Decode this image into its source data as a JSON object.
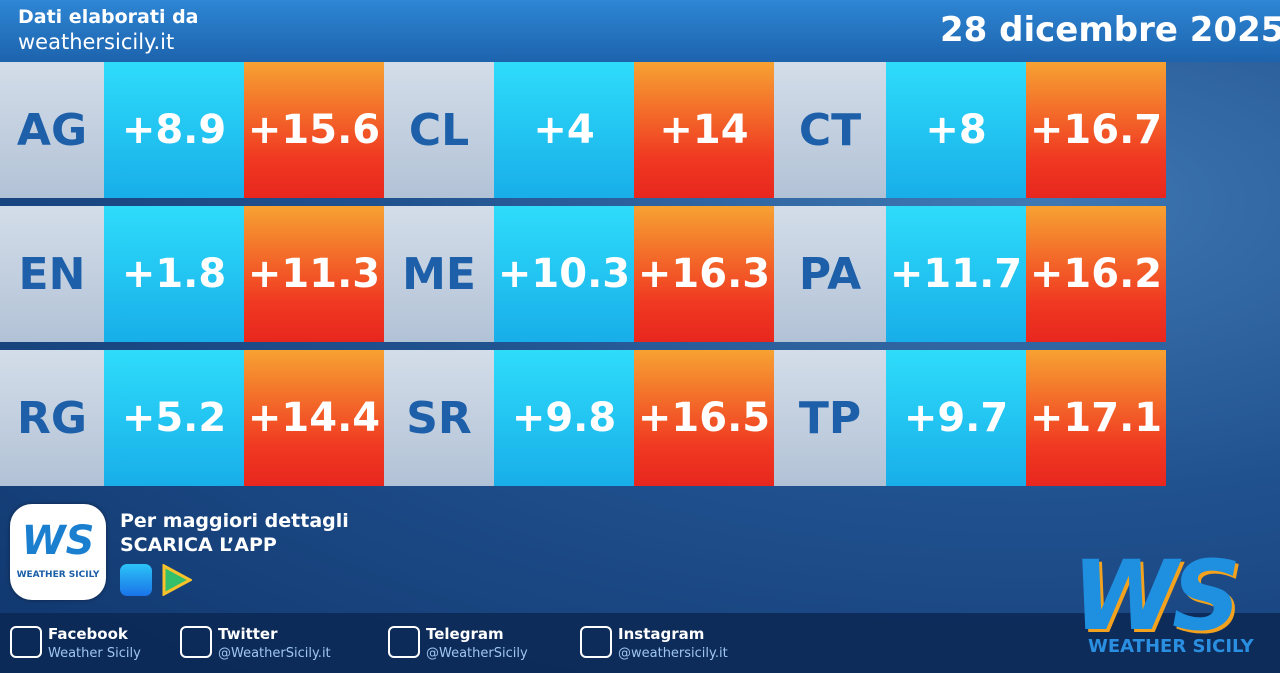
{
  "header": {
    "source_label": "Dati elaborati da",
    "source_site": "weathersicily.it",
    "date": "28 dicembre 2025"
  },
  "table": {
    "rows": [
      [
        "AG",
        "+8.9",
        "+15.6",
        "CL",
        "+4",
        "+14",
        "CT",
        "+8",
        "+16.7"
      ],
      [
        "EN",
        "+1.8",
        "+11.3",
        "ME",
        "+10.3",
        "+16.3",
        "PA",
        "+11.7",
        "+16.2"
      ],
      [
        "RG",
        "+5.2",
        "+14.4",
        "SR",
        "+9.8",
        "+16.5",
        "TP",
        "+9.7",
        "+17.1"
      ]
    ]
  },
  "promo": {
    "line1": "Per maggiori dettagli",
    "line2": "SCARICA L’APP",
    "app_logo": "WS",
    "app_caption": "WEATHER SICILY"
  },
  "social": [
    {
      "network": "Facebook",
      "handle": "Weather Sicily"
    },
    {
      "network": "Twitter",
      "handle": "@WeatherSicily.it"
    },
    {
      "network": "Telegram",
      "handle": "@WeatherSicily"
    },
    {
      "network": "Instagram",
      "handle": "@weathersicily.it"
    }
  ],
  "brand": {
    "logo": "WS",
    "name": "WEATHER SICILY"
  }
}
